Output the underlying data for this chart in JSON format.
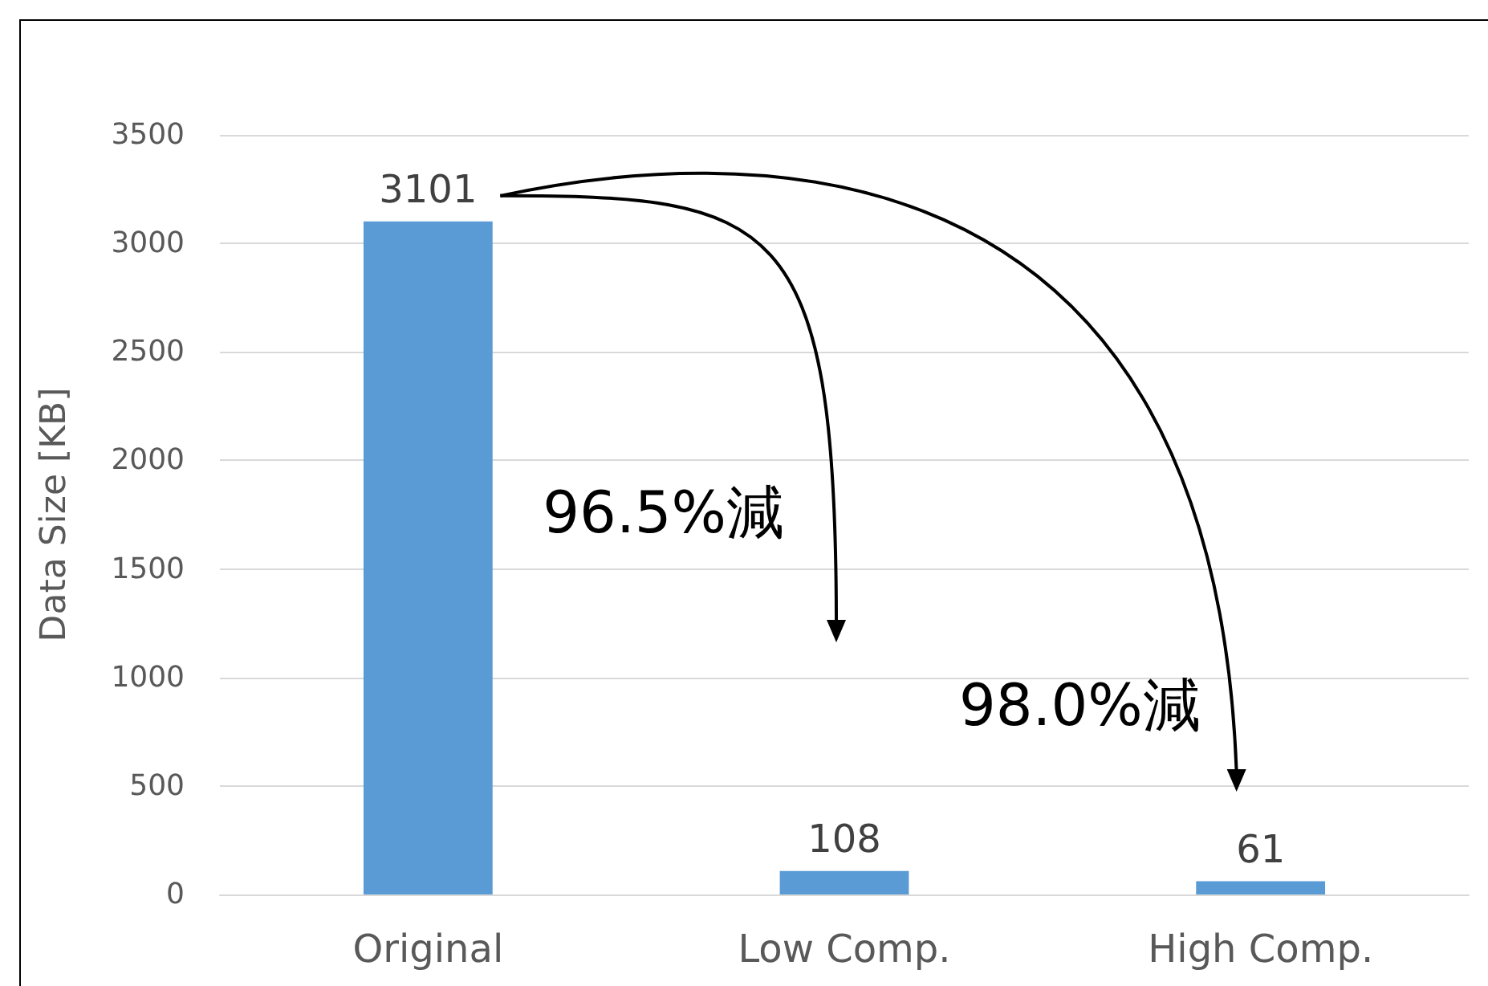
{
  "chart_data": {
    "type": "bar",
    "ylabel": "Data Size [KB]",
    "categories": [
      "Original",
      "Low Comp.",
      "High Comp."
    ],
    "values": [
      3101,
      108,
      61
    ],
    "color": "#5b9bd5",
    "ylim": [
      0,
      3500
    ],
    "yticks": [
      0,
      500,
      1000,
      1500,
      2000,
      2500,
      3000,
      3500
    ],
    "grid": "y",
    "data_labels": true,
    "annotations": [
      "96.5%減",
      "98.0%減"
    ]
  }
}
